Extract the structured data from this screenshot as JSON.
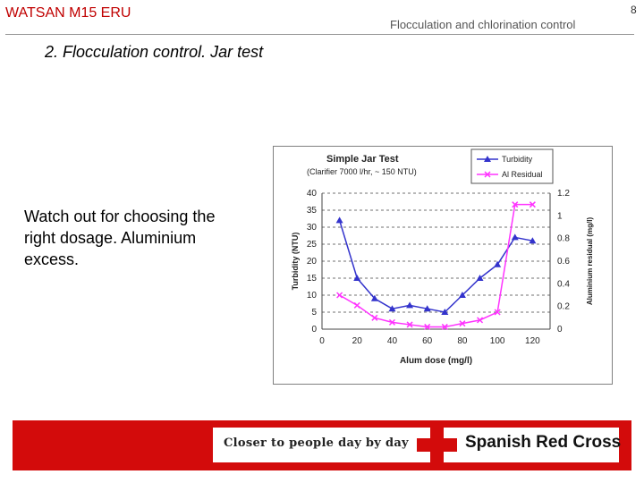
{
  "header": {
    "left": "WATSAN M15 ERU",
    "center": "Flocculation and chlorination control",
    "page": "8"
  },
  "slide": {
    "title": "2. Flocculation control. Jar test",
    "note": "Watch out for choosing the right dosage. Aluminium excess."
  },
  "footer": {
    "slogan": "Closer to people day by day",
    "brand": "Spanish Red Cross"
  },
  "colors": {
    "turbidity": "#3333cc",
    "al_residual": "#ff33ff",
    "brand_red": "#d30b0b"
  },
  "icons": {
    "turbidity_marker": "triangle",
    "al_marker": "x-cross",
    "brand": "red-cross-icon"
  },
  "chart_data": {
    "type": "line",
    "title": "Simple Jar Test",
    "subtitle": "(Clarifier 7000 l/hr, ~ 150 NTU)",
    "xlabel": "Alum dose (mg/l)",
    "ylabel": "Turbidity (NTU)",
    "y2label": "Aluminium residual (mg/l)",
    "xlim": [
      0,
      130
    ],
    "ylim": [
      0,
      40
    ],
    "y2lim": [
      0,
      1.2
    ],
    "x_ticks": [
      0,
      20,
      40,
      60,
      80,
      100,
      120
    ],
    "y_ticks": [
      0,
      5,
      10,
      15,
      20,
      25,
      30,
      35,
      40
    ],
    "y2_ticks": [
      "0",
      "0.2",
      "0.4",
      "0.6",
      "0.8",
      "1",
      "1.2"
    ],
    "legend_position": "top-right",
    "series": [
      {
        "name": "Turbidity",
        "axis": "left",
        "marker": "triangle",
        "x": [
          10,
          20,
          30,
          40,
          50,
          60,
          70,
          80,
          90,
          100,
          110,
          120
        ],
        "values": [
          32,
          15,
          9,
          6,
          7,
          6,
          5,
          10,
          15,
          19,
          27,
          26
        ]
      },
      {
        "name": "Al Residual",
        "axis": "right",
        "marker": "x",
        "x": [
          10,
          20,
          30,
          40,
          50,
          60,
          70,
          80,
          90,
          100,
          110,
          120
        ],
        "values": [
          0.3,
          0.21,
          0.1,
          0.06,
          0.04,
          0.02,
          0.02,
          0.05,
          0.08,
          0.15,
          1.1,
          1.1
        ]
      }
    ]
  }
}
